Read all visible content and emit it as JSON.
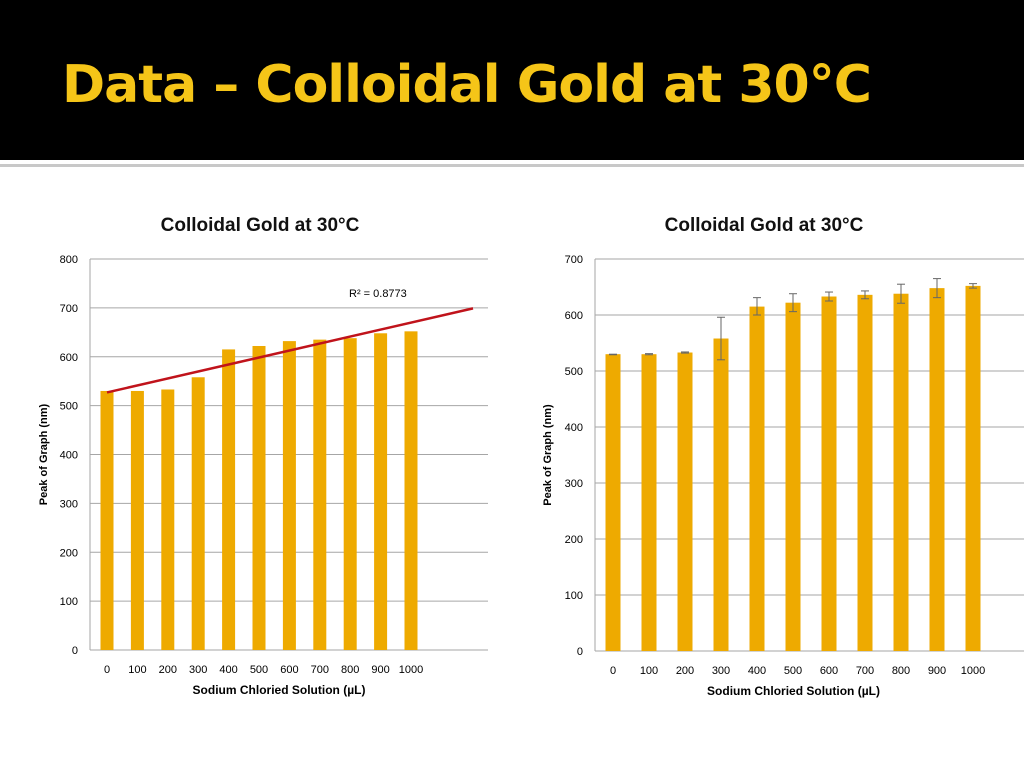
{
  "slide": {
    "title": "Data – Colloidal Gold at 30°C"
  },
  "colors": {
    "header_bg": "#000000",
    "title_text": "#f5c518",
    "bar": "#eeaa00",
    "trendline": "#c0131b",
    "gridline": "#a6a6a6",
    "error_bar": "#666666"
  },
  "chart_data": [
    {
      "type": "bar",
      "title": "Colloidal Gold at 30°C",
      "xlabel": "Sodium Chloried Solution (µL)",
      "ylabel": "Peak of Graph (nm)",
      "categories": [
        "0",
        "100",
        "200",
        "300",
        "400",
        "500",
        "600",
        "700",
        "800",
        "900",
        "1000"
      ],
      "values": [
        530,
        530,
        533,
        558,
        615,
        622,
        632,
        635,
        638,
        648,
        652
      ],
      "ylim": [
        0,
        800
      ],
      "yticks": [
        0,
        100,
        200,
        300,
        400,
        500,
        600,
        700,
        800
      ],
      "grid": true,
      "trendline": {
        "type": "linear",
        "label": "R² = 0.8773",
        "start_value": 527,
        "end_value": 699
      }
    },
    {
      "type": "bar",
      "title": "Colloidal Gold at 30°C",
      "xlabel": "Sodium Chloried Solution (µL)",
      "ylabel": "Peak of Graph (nm)",
      "categories": [
        "0",
        "100",
        "200",
        "300",
        "400",
        "500",
        "600",
        "700",
        "800",
        "900",
        "1000"
      ],
      "values": [
        530,
        530,
        533,
        558,
        615,
        622,
        633,
        636,
        638,
        648,
        652
      ],
      "error_upper": [
        530,
        531,
        534,
        596,
        631,
        638,
        641,
        643,
        655,
        665,
        656
      ],
      "error_lower": [
        529,
        529,
        532,
        520,
        600,
        606,
        625,
        629,
        621,
        631,
        648
      ],
      "ylim": [
        0,
        700
      ],
      "yticks": [
        0,
        100,
        200,
        300,
        400,
        500,
        600,
        700
      ],
      "grid": true
    }
  ]
}
